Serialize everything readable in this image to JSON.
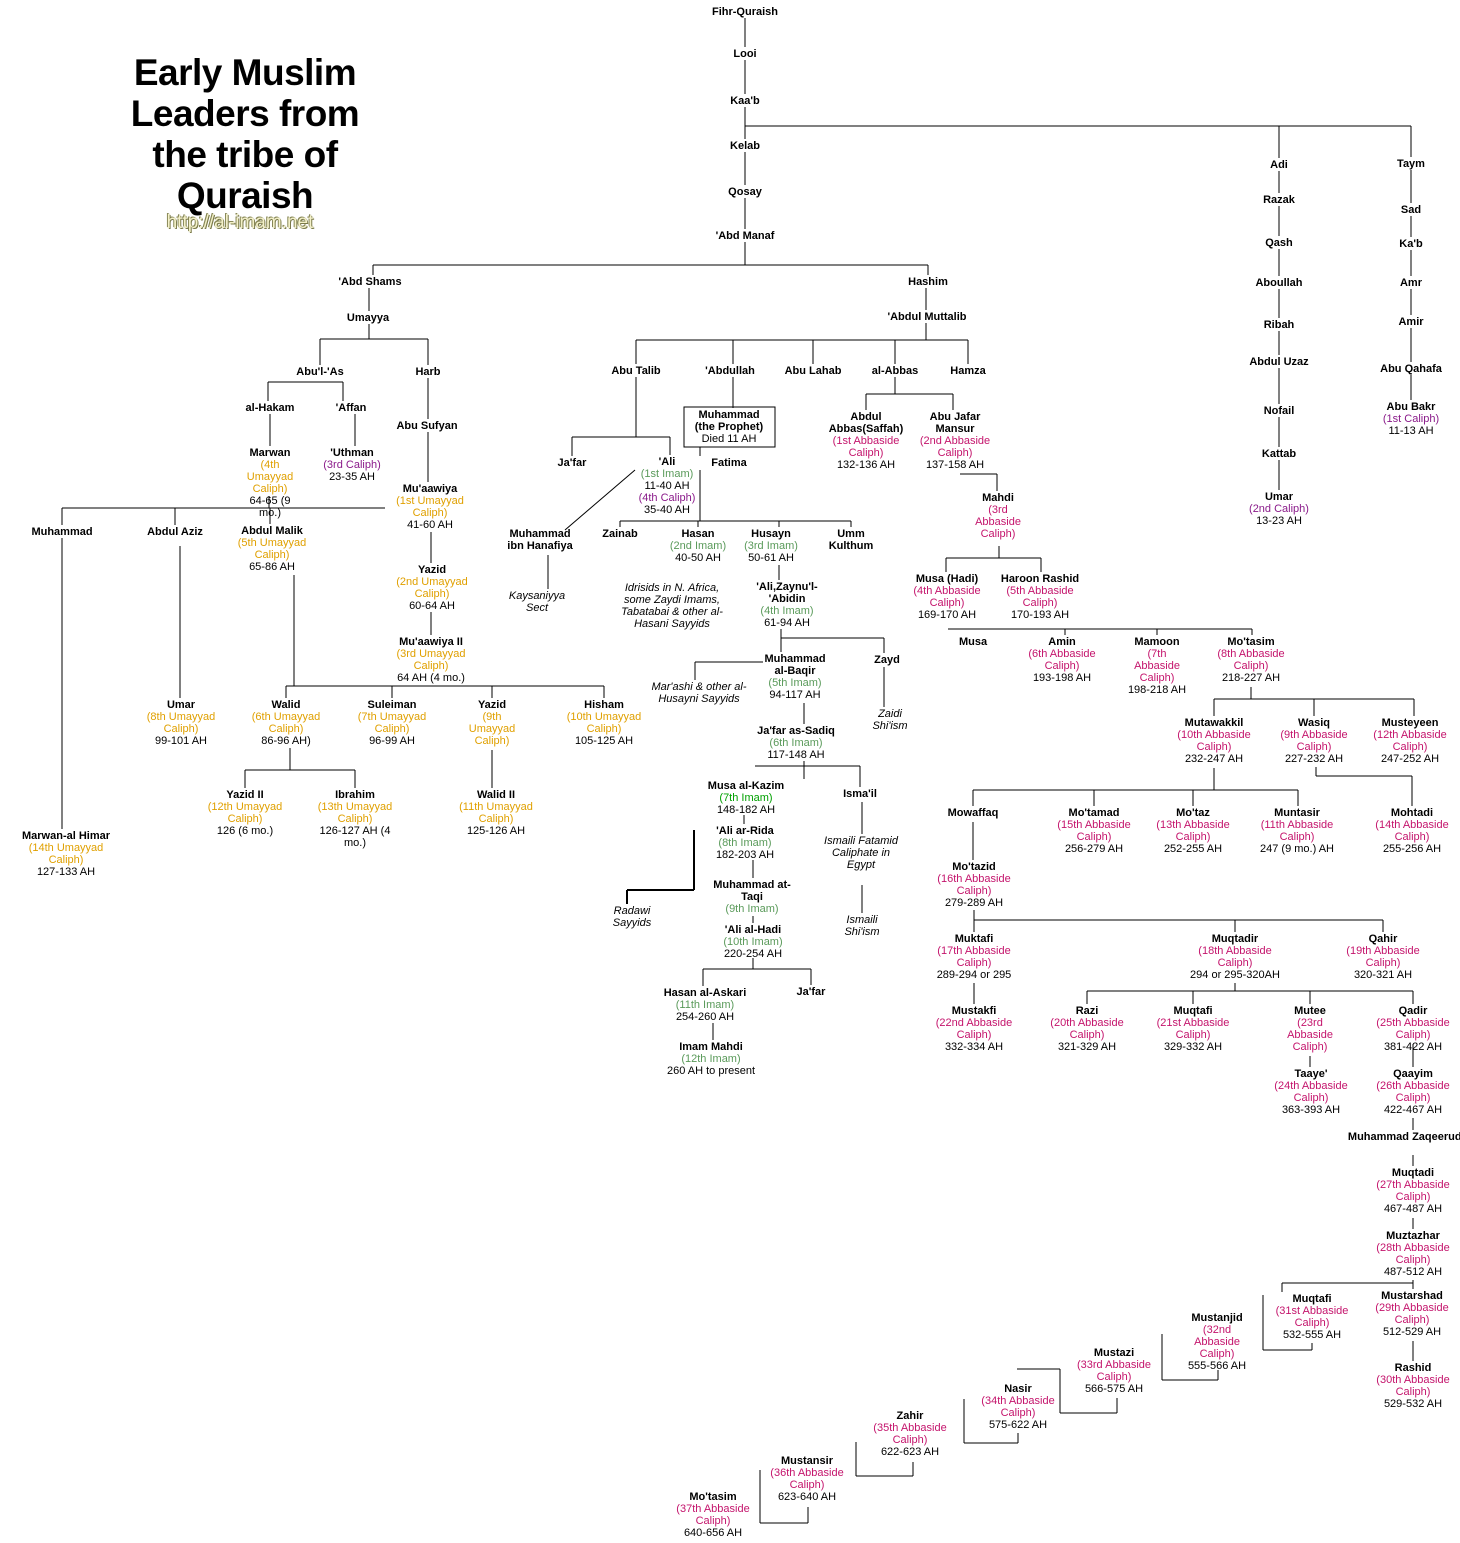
{
  "title": "Early Muslim Leaders from the tribe of Quraish",
  "url": "http://al-imam.net",
  "colors": {
    "umayyad": "#e0a000",
    "abbaside": "#c4146c",
    "imam": "#5a9a5a",
    "caliph": "#8a1a8a",
    "imam_highlight": "#00a000",
    "line": "#000000"
  },
  "nodes": [
    {
      "id": "fihr",
      "name": "Fihr-Quraish"
    },
    {
      "id": "looi",
      "name": "Looi"
    },
    {
      "id": "kaab",
      "name": "Kaa'b"
    },
    {
      "id": "kelab",
      "name": "Kelab"
    },
    {
      "id": "qosay",
      "name": "Qosay"
    },
    {
      "id": "abdmanaf",
      "name": "'Abd Manaf"
    },
    {
      "id": "abdshams",
      "name": "'Abd Shams"
    },
    {
      "id": "hashim",
      "name": "Hashim"
    },
    {
      "id": "umayya",
      "name": "Umayya"
    },
    {
      "id": "abdulmuttalib",
      "name": "'Abdul Muttalib"
    },
    {
      "id": "abulas",
      "name": "Abu'l-'As"
    },
    {
      "id": "harb",
      "name": "Harb"
    },
    {
      "id": "alhakam",
      "name": "al-Hakam"
    },
    {
      "id": "affan",
      "name": "'Affan"
    },
    {
      "id": "abusufyan",
      "name": "Abu Sufyan"
    },
    {
      "id": "marwan",
      "name": "Marwan",
      "role": "(4th Umayyad Caliph)",
      "rc": "umayyad",
      "date": "64-65 (9 mo.)"
    },
    {
      "id": "uthman",
      "name": "'Uthman",
      "role": "(3rd Caliph)",
      "rc": "caliph",
      "date": "23-35 AH"
    },
    {
      "id": "muawiya",
      "name": "Mu'aawiya",
      "role": "(1st Umayyad Caliph)",
      "rc": "umayyad",
      "date": "41-60 AH"
    },
    {
      "id": "yazid1",
      "name": "Yazid",
      "role": "(2nd Umayyad Caliph)",
      "rc": "umayyad",
      "date": "60-64 AH"
    },
    {
      "id": "muawiya2",
      "name": "Mu'aawiya II",
      "role": "(3rd Umayyad Caliph)",
      "rc": "umayyad",
      "date": "64 AH (4 mo.)"
    },
    {
      "id": "muhammad_u",
      "name": "Muhammad"
    },
    {
      "id": "abdulaziz",
      "name": "Abdul Aziz"
    },
    {
      "id": "abdulmalik",
      "name": "Abdul Malik",
      "role": "(5th Umayyad Caliph)",
      "rc": "umayyad",
      "date": "65-86 AH"
    },
    {
      "id": "marwanhimar",
      "name": "Marwan-al Himar",
      "role": "(14th Umayyad Caliph)",
      "rc": "umayyad",
      "date": "127-133 AH"
    },
    {
      "id": "umar2",
      "name": "Umar",
      "role": "(8th Umayyad Caliph)",
      "rc": "umayyad",
      "date": "99-101 AH"
    },
    {
      "id": "walid",
      "name": "Walid",
      "role": "(6th Umayyad Caliph)",
      "rc": "umayyad",
      "date": "86-96 AH)"
    },
    {
      "id": "suleiman",
      "name": "Suleiman",
      "role": "(7th Umayyad Caliph)",
      "rc": "umayyad",
      "date": "96-99 AH"
    },
    {
      "id": "yazid2top",
      "name": "Yazid",
      "role": "(9th Umayyad Caliph)",
      "rc": "umayyad"
    },
    {
      "id": "hisham",
      "name": "Hisham",
      "role": "(10th Umayyad Caliph)",
      "rc": "umayyad",
      "date": "105-125 AH"
    },
    {
      "id": "yazidII",
      "name": "Yazid II",
      "role": "(12th Umayyad Caliph)",
      "rc": "umayyad",
      "date": "126 (6 mo.)"
    },
    {
      "id": "ibrahim",
      "name": "Ibrahim",
      "role": "(13th Umayyad Caliph)",
      "rc": "umayyad",
      "date": "126-127 AH (4 mo.)"
    },
    {
      "id": "walidII",
      "name": "Walid II",
      "role": "(11th Umayyad Caliph)",
      "rc": "umayyad",
      "date": "125-126 AH"
    },
    {
      "id": "abutalib",
      "name": "Abu Talib"
    },
    {
      "id": "abdullah",
      "name": "'Abdullah"
    },
    {
      "id": "abulahab",
      "name": "Abu Lahab"
    },
    {
      "id": "alabbas",
      "name": "al-Abbas"
    },
    {
      "id": "hamza",
      "name": "Hamza"
    },
    {
      "id": "muhammad_p",
      "name": "Muhammad (the Prophet)",
      "date": "Died 11 AH"
    },
    {
      "id": "jafar1",
      "name": "Ja'far"
    },
    {
      "id": "ali",
      "name": "'Ali",
      "role": "(1st Imam)",
      "rc": "imam",
      "role2": "11-40 AH",
      "role3": "(4th Caliph)",
      "rc3": "caliph",
      "date": "35-40 AH"
    },
    {
      "id": "fatima",
      "name": "Fatima"
    },
    {
      "id": "hanafiya",
      "name": "Muhammad ibn Hanafiya"
    },
    {
      "id": "kaysaniyya",
      "name": "Kaysaniyya Sect",
      "note": true
    },
    {
      "id": "zainab",
      "name": "Zainab"
    },
    {
      "id": "hasan",
      "name": "Hasan",
      "role": "(2nd Imam)",
      "rc": "imam",
      "date": "40-50 AH"
    },
    {
      "id": "husayn",
      "name": "Husayn",
      "role": "(3rd Imam)",
      "rc": "imam",
      "date": "50-61 AH"
    },
    {
      "id": "ummkulthum",
      "name": "Umm Kulthum"
    },
    {
      "id": "idrisids",
      "name": "Idrisids in N. Africa, some Zaydi Imams, Tabatabai & other al-Hasani Sayyids",
      "note": true
    },
    {
      "id": "zaynul",
      "name": "'Ali,Zaynu'l-'Abidin",
      "role": "(4th Imam)",
      "rc": "imam",
      "date": "61-94 AH"
    },
    {
      "id": "baqir",
      "name": "Muhammad al-Baqir",
      "role": "(5th Imam)",
      "rc": "imam",
      "date": "94-117 AH"
    },
    {
      "id": "zayd",
      "name": "Zayd"
    },
    {
      "id": "marashi",
      "name": "Mar'ashi & other al-Husayni Sayyids",
      "note": true
    },
    {
      "id": "zaidi",
      "name": "Zaidi Shi'ism",
      "note": true
    },
    {
      "id": "sadiq",
      "name": "Ja'far as-Sadiq",
      "role": "(6th Imam)",
      "rc": "imam",
      "date": "117-148 AH"
    },
    {
      "id": "kazim",
      "name": "Musa al-Kazim",
      "role": "(7th Imam)",
      "rc": "imam_highlight",
      "date": "148-182 AH"
    },
    {
      "id": "ismail",
      "name": "Isma'il"
    },
    {
      "id": "rida",
      "name": "'Ali ar-Rida",
      "role": "(8th Imam)",
      "rc": "imam",
      "date": "182-203 AH"
    },
    {
      "id": "fatamid",
      "name": "Ismaili Fatamid Caliphate in Egypt",
      "note": true
    },
    {
      "id": "taqi",
      "name": "Muhammad at-Taqi",
      "role": "(9th Imam)",
      "rc": "imam"
    },
    {
      "id": "radawi",
      "name": "Radawi Sayyids",
      "note": true
    },
    {
      "id": "ismaili",
      "name": "Ismaili Shi'ism",
      "note": true
    },
    {
      "id": "hadi",
      "name": "'Ali al-Hadi",
      "role": "(10th Imam)",
      "rc": "imam",
      "date": "220-254 AH"
    },
    {
      "id": "askari",
      "name": "Hasan al-Askari",
      "role": "(11th Imam)",
      "rc": "imam",
      "date": "254-260 AH"
    },
    {
      "id": "jafar2",
      "name": "Ja'far"
    },
    {
      "id": "mahdi_i",
      "name": "Imam Mahdi",
      "role": "(12th Imam)",
      "rc": "imam",
      "date": "260 AH to present"
    },
    {
      "id": "saffah",
      "name": "Abdul Abbas(Saffah)",
      "role": "(1st Abbaside Caliph)",
      "rc": "abbaside",
      "date": "132-136 AH"
    },
    {
      "id": "mansur",
      "name": "Abu Jafar Mansur",
      "role": "(2nd Abbaside Caliph)",
      "rc": "abbaside",
      "date": "137-158 AH"
    },
    {
      "id": "mahdi_a",
      "name": "Mahdi",
      "role": "(3rd Abbaside Caliph)",
      "rc": "abbaside"
    },
    {
      "id": "musahadi",
      "name": "Musa (Hadi)",
      "role": "(4th Abbaside Caliph)",
      "rc": "abbaside",
      "date": "169-170 AH"
    },
    {
      "id": "haroon",
      "name": "Haroon Rashid",
      "role": "(5th Abbaside Caliph)",
      "rc": "abbaside",
      "date": "170-193 AH"
    },
    {
      "id": "musa",
      "name": "Musa"
    },
    {
      "id": "amin",
      "name": "Amin",
      "role": "(6th Abbaside Caliph)",
      "rc": "abbaside",
      "date": "193-198 AH"
    },
    {
      "id": "mamoon",
      "name": "Mamoon",
      "role": "(7th Abbaside Caliph)",
      "rc": "abbaside",
      "date": "198-218 AH"
    },
    {
      "id": "motasim8",
      "name": "Mo'tasim",
      "role": "(8th Abbaside Caliph)",
      "rc": "abbaside",
      "date": "218-227 AH"
    },
    {
      "id": "mutawakkil",
      "name": "Mutawakkil",
      "role": "(10th Abbaside Caliph)",
      "rc": "abbaside",
      "date": "232-247 AH"
    },
    {
      "id": "wasiq",
      "name": "Wasiq",
      "role": "(9th Abbaside Caliph)",
      "rc": "abbaside",
      "date": "227-232 AH"
    },
    {
      "id": "musteyeen",
      "name": "Musteyeen",
      "role": "(12th Abbaside Caliph)",
      "rc": "abbaside",
      "date": "247-252 AH"
    },
    {
      "id": "mowaffaq",
      "name": "Mowaffaq"
    },
    {
      "id": "motamad",
      "name": "Mo'tamad",
      "role": "(15th Abbaside Caliph)",
      "rc": "abbaside",
      "date": "256-279 AH"
    },
    {
      "id": "motaz",
      "name": "Mo'taz",
      "role": "(13th Abbaside Caliph)",
      "rc": "abbaside",
      "date": "252-255 AH"
    },
    {
      "id": "muntasir",
      "name": "Muntasir",
      "role": "(11th Abbaside Caliph)",
      "rc": "abbaside",
      "date": "247 (9 mo.) AH"
    },
    {
      "id": "mohtadi",
      "name": "Mohtadi",
      "role": "(14th Abbaside Caliph)",
      "rc": "abbaside",
      "date": "255-256 AH"
    },
    {
      "id": "motazid",
      "name": "Mo'tazid",
      "role": "(16th Abbaside Caliph)",
      "rc": "abbaside",
      "date": "279-289 AH"
    },
    {
      "id": "muktafi",
      "name": "Muktafi",
      "role": "(17th Abbaside Caliph)",
      "rc": "abbaside",
      "date": "289-294 or 295"
    },
    {
      "id": "muqtadir",
      "name": "Muqtadir",
      "role": "(18th Abbaside Caliph)",
      "rc": "abbaside",
      "date": "294 or 295-320AH"
    },
    {
      "id": "qahir",
      "name": "Qahir",
      "role": "(19th Abbaside Caliph)",
      "rc": "abbaside",
      "date": "320-321 AH"
    },
    {
      "id": "mustakfi",
      "name": "Mustakfi",
      "role": "(22nd Abbaside Caliph)",
      "rc": "abbaside",
      "date": "332-334 AH"
    },
    {
      "id": "razi",
      "name": "Razi",
      "role": "(20th Abbaside Caliph)",
      "rc": "abbaside",
      "date": "321-329 AH"
    },
    {
      "id": "muqtafi21",
      "name": "Muqtafi",
      "role": "(21st Abbaside Caliph)",
      "rc": "abbaside",
      "date": "329-332 AH"
    },
    {
      "id": "mutee",
      "name": "Mutee",
      "role": "(23rd Abbaside Caliph)",
      "rc": "abbaside"
    },
    {
      "id": "qadir",
      "name": "Qadir",
      "role": "(25th Abbaside Caliph)",
      "rc": "abbaside",
      "date": "381-422 AH"
    },
    {
      "id": "taaye",
      "name": "Taaye'",
      "role": "(24th Abbaside Caliph)",
      "rc": "abbaside",
      "date": "363-393 AH"
    },
    {
      "id": "qaayim",
      "name": "Qaayim",
      "role": "(26th Abbaside Caliph)",
      "rc": "abbaside",
      "date": "422-467 AH"
    },
    {
      "id": "zaqeer",
      "name": "Muhammad Zaqeeruddin"
    },
    {
      "id": "muqtadi",
      "name": "Muqtadi",
      "role": "(27th Abbaside Caliph)",
      "rc": "abbaside",
      "date": "467-487 AH"
    },
    {
      "id": "muztazhar",
      "name": "Muztazhar",
      "role": "(28th Abbaside Caliph)",
      "rc": "abbaside",
      "date": "487-512 AH"
    },
    {
      "id": "muqtafi31",
      "name": "Muqtafi",
      "role": "(31st Abbaside Caliph)",
      "rc": "abbaside",
      "date": "532-555 AH"
    },
    {
      "id": "mustarshad",
      "name": "Mustarshad",
      "role": "(29th Abbaside Caliph)",
      "rc": "abbaside",
      "date": "512-529 AH"
    },
    {
      "id": "mustanjid",
      "name": "Mustanjid",
      "role": "(32nd Abbaside Caliph)",
      "rc": "abbaside",
      "date": "555-566 AH"
    },
    {
      "id": "rashid",
      "name": "Rashid",
      "role": "(30th Abbaside Caliph)",
      "rc": "abbaside",
      "date": "529-532 AH"
    },
    {
      "id": "mustazi",
      "name": "Mustazi",
      "role": "(33rd Abbaside Caliph)",
      "rc": "abbaside",
      "date": "566-575 AH"
    },
    {
      "id": "nasir",
      "name": "Nasir",
      "role": "(34th Abbaside Caliph)",
      "rc": "abbaside",
      "date": "575-622 AH"
    },
    {
      "id": "zahir",
      "name": "Zahir",
      "role": "(35th Abbaside Caliph)",
      "rc": "abbaside",
      "date": "622-623 AH"
    },
    {
      "id": "mustansir",
      "name": "Mustansir",
      "role": "(36th Abbaside Caliph)",
      "rc": "abbaside",
      "date": "623-640 AH"
    },
    {
      "id": "motasim37",
      "name": "Mo'tasim",
      "role": "(37th Abbaside Caliph)",
      "rc": "abbaside",
      "date": "640-656 AH"
    },
    {
      "id": "adi",
      "name": "Adi"
    },
    {
      "id": "razak",
      "name": "Razak"
    },
    {
      "id": "qash",
      "name": "Qash"
    },
    {
      "id": "aboullah",
      "name": "Aboullah"
    },
    {
      "id": "ribah",
      "name": "Ribah"
    },
    {
      "id": "abduluzaz",
      "name": "Abdul Uzaz"
    },
    {
      "id": "nofail",
      "name": "Nofail"
    },
    {
      "id": "kattab",
      "name": "Kattab"
    },
    {
      "id": "umar",
      "name": "Umar",
      "role": "(2nd Caliph)",
      "rc": "caliph",
      "date": "13-23 AH"
    },
    {
      "id": "taym",
      "name": "Taym"
    },
    {
      "id": "sad",
      "name": "Sad"
    },
    {
      "id": "kab",
      "name": "Ka'b"
    },
    {
      "id": "amr",
      "name": "Amr"
    },
    {
      "id": "amir",
      "name": "Amir"
    },
    {
      "id": "abuqahafa",
      "name": "Abu Qahafa"
    },
    {
      "id": "abubakr",
      "name": "Abu Bakr",
      "role": "(1st Caliph)",
      "rc": "caliph",
      "date": "11-13 AH"
    }
  ]
}
